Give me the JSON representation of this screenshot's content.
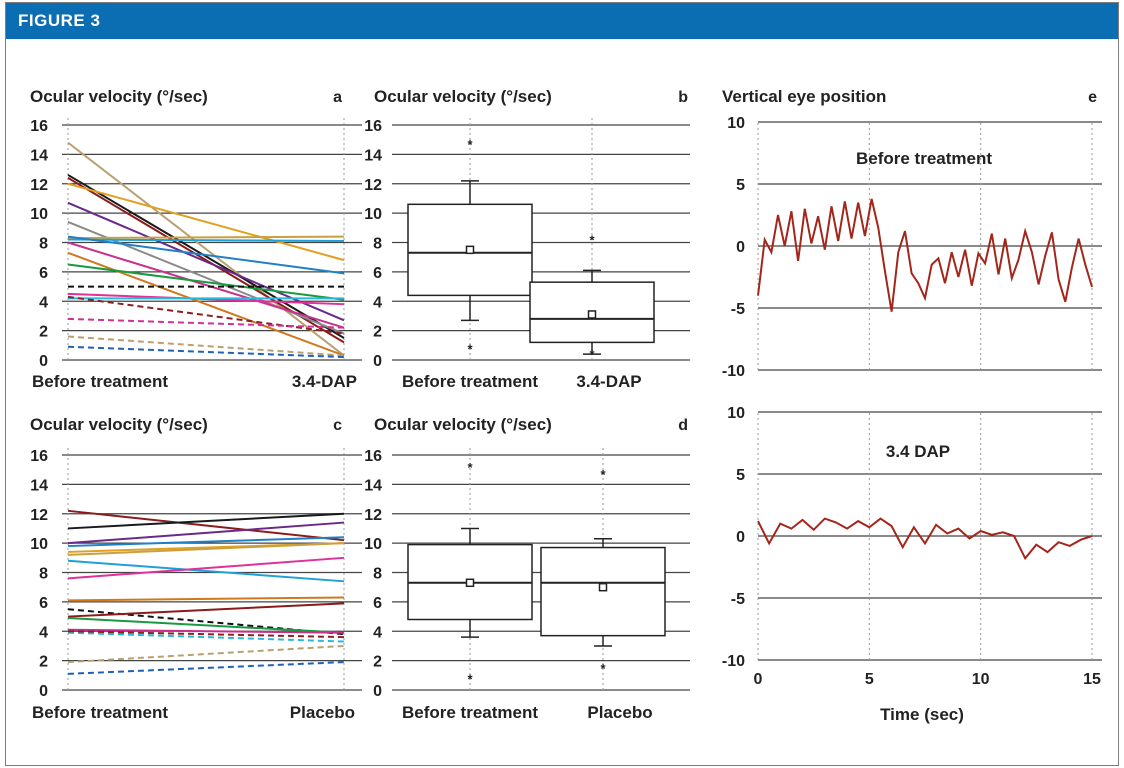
{
  "figure_label": "FIGURE 3",
  "colors": {
    "banner": "#0b6db2",
    "trace": "#a3261a"
  },
  "chart_data": [
    {
      "panel": "a",
      "type": "line",
      "title": "Ocular velocity (°/sec)",
      "categories": [
        "Before treatment",
        "3.4-DAP"
      ],
      "yticks": [
        "0",
        "2",
        "4",
        "6",
        "8",
        "10",
        "12",
        "14",
        "16"
      ],
      "ylim": [
        0,
        16
      ],
      "grid": true,
      "series": [
        {
          "values": [
            14.8,
            0.3
          ],
          "color": "#b8a070",
          "dashed": false
        },
        {
          "values": [
            12.6,
            1.5
          ],
          "color": "#1a1a1a",
          "dashed": false
        },
        {
          "values": [
            12.4,
            1.2
          ],
          "color": "#8b1a1a",
          "dashed": false
        },
        {
          "values": [
            12.0,
            6.8
          ],
          "color": "#e0a020",
          "dashed": false
        },
        {
          "values": [
            10.7,
            2.7
          ],
          "color": "#6a2a8a",
          "dashed": false
        },
        {
          "values": [
            9.4,
            1.8
          ],
          "color": "#8a8a8a",
          "dashed": false
        },
        {
          "values": [
            8.3,
            8.4
          ],
          "color": "#c8a040",
          "dashed": false
        },
        {
          "values": [
            8.2,
            8.1
          ],
          "color": "#1fa0d8",
          "dashed": false
        },
        {
          "values": [
            8.4,
            5.9
          ],
          "color": "#1f80c8",
          "dashed": false
        },
        {
          "values": [
            8.0,
            2.2
          ],
          "color": "#c8308c",
          "dashed": false
        },
        {
          "values": [
            7.3,
            0.3
          ],
          "color": "#d07820",
          "dashed": false
        },
        {
          "values": [
            6.5,
            4.1
          ],
          "color": "#1a9a40",
          "dashed": false
        },
        {
          "values": [
            5.0,
            5.0
          ],
          "color": "#111111",
          "dashed": true
        },
        {
          "values": [
            4.5,
            3.8
          ],
          "color": "#e0309a",
          "dashed": false
        },
        {
          "values": [
            4.2,
            4.2
          ],
          "color": "#28b8e0",
          "dashed": false
        },
        {
          "values": [
            4.3,
            1.8
          ],
          "color": "#8b2020",
          "dashed": true
        },
        {
          "values": [
            2.8,
            2.2
          ],
          "color": "#d0309a",
          "dashed": true
        },
        {
          "values": [
            1.6,
            0.3
          ],
          "color": "#b8a070",
          "dashed": true
        },
        {
          "values": [
            0.9,
            0.2
          ],
          "color": "#1f60b8",
          "dashed": true
        }
      ]
    },
    {
      "panel": "b",
      "type": "box",
      "title": "Ocular velocity (°/sec)",
      "categories": [
        "Before treatment",
        "3.4-DAP"
      ],
      "yticks": [
        "0",
        "2",
        "4",
        "6",
        "8",
        "10",
        "12",
        "14",
        "16"
      ],
      "ylim": [
        0,
        16
      ],
      "grid": true,
      "boxes": [
        {
          "whisker_low": 2.7,
          "q1": 4.4,
          "median": 7.3,
          "q3": 10.6,
          "whisker_high": 12.2,
          "mean": 7.5,
          "outliers": [
            14.7,
            0.8
          ]
        },
        {
          "whisker_low": 0.4,
          "q1": 1.2,
          "median": 2.8,
          "q3": 5.3,
          "whisker_high": 6.1,
          "mean": 3.1,
          "outliers": [
            8.2,
            0.4
          ]
        }
      ]
    },
    {
      "panel": "c",
      "type": "line",
      "title": "Ocular velocity (°/sec)",
      "categories": [
        "Before treatment",
        "Placebo"
      ],
      "yticks": [
        "0",
        "2",
        "4",
        "6",
        "8",
        "10",
        "12",
        "14",
        "16"
      ],
      "ylim": [
        0,
        16
      ],
      "grid": true,
      "series": [
        {
          "values": [
            12.2,
            10.2
          ],
          "color": "#8b1a1a",
          "dashed": false
        },
        {
          "values": [
            11.0,
            12.0
          ],
          "color": "#1a1a1a",
          "dashed": false
        },
        {
          "values": [
            10.0,
            11.4
          ],
          "color": "#6a2a8a",
          "dashed": false
        },
        {
          "values": [
            9.8,
            10.4
          ],
          "color": "#1f80c8",
          "dashed": false
        },
        {
          "values": [
            9.4,
            10.0
          ],
          "color": "#e0a020",
          "dashed": false
        },
        {
          "values": [
            9.2,
            10.0
          ],
          "color": "#c8a040",
          "dashed": false
        },
        {
          "values": [
            8.8,
            7.4
          ],
          "color": "#1fa0d8",
          "dashed": false
        },
        {
          "values": [
            7.6,
            9.0
          ],
          "color": "#e0309a",
          "dashed": false
        },
        {
          "values": [
            6.1,
            6.3
          ],
          "color": "#d07820",
          "dashed": false
        },
        {
          "values": [
            5.5,
            3.8
          ],
          "color": "#111111",
          "dashed": true
        },
        {
          "values": [
            5.0,
            5.9
          ],
          "color": "#8b1a1a",
          "dashed": false
        },
        {
          "values": [
            4.9,
            3.9
          ],
          "color": "#1a9a40",
          "dashed": false
        },
        {
          "values": [
            4.1,
            3.9
          ],
          "color": "#c8308c",
          "dashed": false
        },
        {
          "values": [
            3.9,
            3.3
          ],
          "color": "#28b8e0",
          "dashed": true
        },
        {
          "values": [
            4.0,
            3.6
          ],
          "color": "#8b2020",
          "dashed": true
        },
        {
          "values": [
            1.9,
            3.0
          ],
          "color": "#b8a070",
          "dashed": true
        },
        {
          "values": [
            1.1,
            1.9
          ],
          "color": "#1f60b8",
          "dashed": true
        }
      ]
    },
    {
      "panel": "d",
      "type": "box",
      "title": "Ocular velocity (°/sec)",
      "categories": [
        "Before treatment",
        "Placebo"
      ],
      "yticks": [
        "0",
        "2",
        "4",
        "6",
        "8",
        "10",
        "12",
        "14",
        "16"
      ],
      "ylim": [
        0,
        16
      ],
      "grid": true,
      "boxes": [
        {
          "whisker_low": 3.6,
          "q1": 4.8,
          "median": 7.3,
          "q3": 9.9,
          "whisker_high": 11.0,
          "mean": 7.3,
          "outliers": [
            15.2,
            0.8
          ]
        },
        {
          "whisker_low": 3.0,
          "q1": 3.7,
          "median": 7.3,
          "q3": 9.7,
          "whisker_high": 10.3,
          "mean": 7.0,
          "outliers": [
            14.7,
            1.5
          ]
        }
      ]
    },
    {
      "panel": "e",
      "type": "line",
      "title": "Vertical eye position",
      "xlabel": "Time (sec)",
      "xticks": [
        "0",
        "5",
        "10",
        "15"
      ],
      "xlim": [
        0,
        15
      ],
      "yticks": [
        "-10",
        "-5",
        "0",
        "5",
        "10"
      ],
      "ylim": [
        -10,
        10
      ],
      "grid": true,
      "traces": [
        {
          "annotation": "Before treatment",
          "x": [
            0,
            0.3,
            0.6,
            0.9,
            1.2,
            1.5,
            1.8,
            2.1,
            2.4,
            2.7,
            3.0,
            3.3,
            3.6,
            3.9,
            4.2,
            4.5,
            4.8,
            5.1,
            5.4,
            5.7,
            6.0,
            6.3,
            6.6,
            6.9,
            7.2,
            7.5,
            7.8,
            8.1,
            8.4,
            8.7,
            9.0,
            9.3,
            9.6,
            9.9,
            10.2,
            10.5,
            10.8,
            11.1,
            11.4,
            11.7,
            12.0,
            12.3,
            12.6,
            12.9,
            13.2,
            13.5,
            13.8,
            14.1,
            14.4,
            14.7,
            15.0
          ],
          "y": [
            -4.0,
            0.5,
            -0.5,
            2.5,
            0.0,
            2.8,
            -1.2,
            3.0,
            0.2,
            2.4,
            -0.3,
            3.2,
            0.4,
            3.6,
            0.6,
            3.5,
            0.8,
            3.8,
            1.5,
            -2.0,
            -5.3,
            -0.5,
            1.2,
            -2.2,
            -3.0,
            -4.2,
            -1.5,
            -1.0,
            -3.0,
            -0.5,
            -2.5,
            -0.3,
            -3.2,
            -0.6,
            -1.4,
            1.0,
            -2.3,
            0.6,
            -2.6,
            -1.1,
            1.2,
            -0.5,
            -3.1,
            -0.8,
            1.1,
            -2.7,
            -4.5,
            -1.7,
            0.6,
            -1.5,
            -3.3
          ]
        },
        {
          "annotation": "3.4 DAP",
          "x": [
            0,
            0.5,
            1.0,
            1.5,
            2.0,
            2.5,
            3.0,
            3.5,
            4.0,
            4.5,
            5.0,
            5.5,
            6.0,
            6.5,
            7.0,
            7.5,
            8.0,
            8.5,
            9.0,
            9.5,
            10.0,
            10.5,
            11.0,
            11.5,
            12.0,
            12.5,
            13.0,
            13.5,
            14.0,
            14.5,
            15.0
          ],
          "y": [
            1.2,
            -0.6,
            1.0,
            0.6,
            1.3,
            0.5,
            1.4,
            1.1,
            0.6,
            1.2,
            0.7,
            1.4,
            0.8,
            -0.9,
            0.7,
            -0.6,
            0.9,
            0.2,
            0.6,
            -0.2,
            0.4,
            0.1,
            0.3,
            0.0,
            -1.8,
            -0.7,
            -1.3,
            -0.5,
            -0.8,
            -0.3,
            0.0
          ]
        }
      ]
    }
  ]
}
